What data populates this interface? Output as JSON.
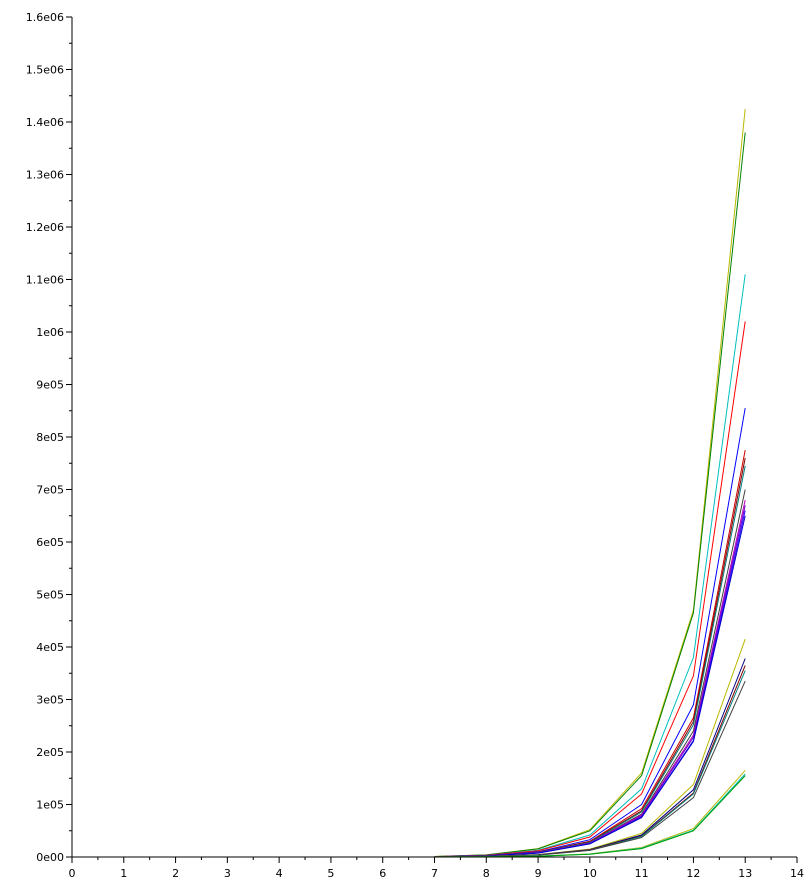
{
  "chart_data": {
    "type": "line",
    "title": "",
    "xlabel": "",
    "ylabel": "",
    "xlim": [
      0,
      14
    ],
    "ylim": [
      0,
      1600000
    ],
    "grid": false,
    "legend": "none",
    "x_ticks": [
      {
        "value": 0,
        "label": "0"
      },
      {
        "value": 1,
        "label": "1"
      },
      {
        "value": 2,
        "label": "2"
      },
      {
        "value": 3,
        "label": "3"
      },
      {
        "value": 4,
        "label": "4"
      },
      {
        "value": 5,
        "label": "5"
      },
      {
        "value": 6,
        "label": "6"
      },
      {
        "value": 7,
        "label": "7"
      },
      {
        "value": 8,
        "label": "8"
      },
      {
        "value": 9,
        "label": "9"
      },
      {
        "value": 10,
        "label": "10"
      },
      {
        "value": 11,
        "label": "11"
      },
      {
        "value": 12,
        "label": "12"
      },
      {
        "value": 13,
        "label": "13"
      },
      {
        "value": 14,
        "label": "14"
      }
    ],
    "y_ticks": [
      {
        "value": 0,
        "label": "0e00"
      },
      {
        "value": 100000,
        "label": "1e05"
      },
      {
        "value": 200000,
        "label": "2e05"
      },
      {
        "value": 300000,
        "label": "3e05"
      },
      {
        "value": 400000,
        "label": "4e05"
      },
      {
        "value": 500000,
        "label": "5e05"
      },
      {
        "value": 600000,
        "label": "6e05"
      },
      {
        "value": 700000,
        "label": "7e05"
      },
      {
        "value": 800000,
        "label": "8e05"
      },
      {
        "value": 900000,
        "label": "9e05"
      },
      {
        "value": 1000000,
        "label": "1e06"
      },
      {
        "value": 1100000,
        "label": "1.1e06"
      },
      {
        "value": 1200000,
        "label": "1.2e06"
      },
      {
        "value": 1300000,
        "label": "1.3e06"
      },
      {
        "value": 1400000,
        "label": "1.4e06"
      },
      {
        "value": 1500000,
        "label": "1.5e06"
      },
      {
        "value": 1600000,
        "label": "1.6e06"
      }
    ],
    "x": [
      7,
      8,
      9,
      10,
      11,
      12,
      13
    ],
    "series": [
      {
        "color": "#b8b800",
        "values": [
          1000,
          4000,
          16000,
          52000,
          160000,
          470000,
          1425000
        ]
      },
      {
        "color": "#008000",
        "values": [
          1000,
          4000,
          15500,
          50000,
          155000,
          465000,
          1380000
        ]
      },
      {
        "color": "#00bfbf",
        "values": [
          800,
          3500,
          13000,
          42000,
          130000,
          380000,
          1110000
        ]
      },
      {
        "color": "#ff0000",
        "values": [
          700,
          3200,
          12000,
          38000,
          120000,
          345000,
          1020000
        ]
      },
      {
        "color": "#0000ff",
        "values": [
          600,
          2800,
          10000,
          33000,
          100000,
          290000,
          855000
        ]
      },
      {
        "color": "#cc0000",
        "values": [
          550,
          2600,
          9000,
          30000,
          92000,
          265000,
          775000
        ]
      },
      {
        "color": "#800000",
        "values": [
          500,
          2500,
          8800,
          29000,
          88000,
          258000,
          760000
        ]
      },
      {
        "color": "#008080",
        "values": [
          500,
          2400,
          8500,
          28000,
          86000,
          252000,
          745000
        ]
      },
      {
        "color": "#404040",
        "values": [
          480,
          2300,
          8200,
          27000,
          82000,
          240000,
          700000
        ]
      },
      {
        "color": "#bf00bf",
        "values": [
          460,
          2200,
          8000,
          26500,
          80000,
          232000,
          680000
        ]
      },
      {
        "color": "#6600cc",
        "values": [
          450,
          2100,
          7800,
          26000,
          78000,
          228000,
          670000
        ]
      },
      {
        "color": "#3300ff",
        "values": [
          440,
          2000,
          7600,
          25500,
          76000,
          222000,
          660000
        ]
      },
      {
        "color": "#0000cc",
        "values": [
          430,
          1950,
          7400,
          25000,
          75000,
          220000,
          650000
        ]
      },
      {
        "color": "#b8b800",
        "values": [
          300,
          1300,
          4500,
          15000,
          45000,
          138000,
          415000
        ]
      },
      {
        "color": "#000080",
        "values": [
          280,
          1200,
          4200,
          14000,
          42000,
          128000,
          378000
        ]
      },
      {
        "color": "#800000",
        "values": [
          270,
          1150,
          4000,
          13500,
          40000,
          122000,
          365000
        ]
      },
      {
        "color": "#008080",
        "values": [
          260,
          1100,
          3900,
          13000,
          39000,
          120000,
          355000
        ]
      },
      {
        "color": "#404040",
        "values": [
          250,
          1050,
          3700,
          12500,
          37000,
          113000,
          335000
        ]
      },
      {
        "color": "#b8b800",
        "values": [
          100,
          500,
          1800,
          6000,
          18000,
          54000,
          165000
        ]
      },
      {
        "color": "#00bfbf",
        "values": [
          90,
          450,
          1700,
          5500,
          17000,
          51000,
          158000
        ]
      },
      {
        "color": "#00a000",
        "values": [
          80,
          420,
          1600,
          5200,
          16000,
          50000,
          155000
        ]
      }
    ]
  }
}
